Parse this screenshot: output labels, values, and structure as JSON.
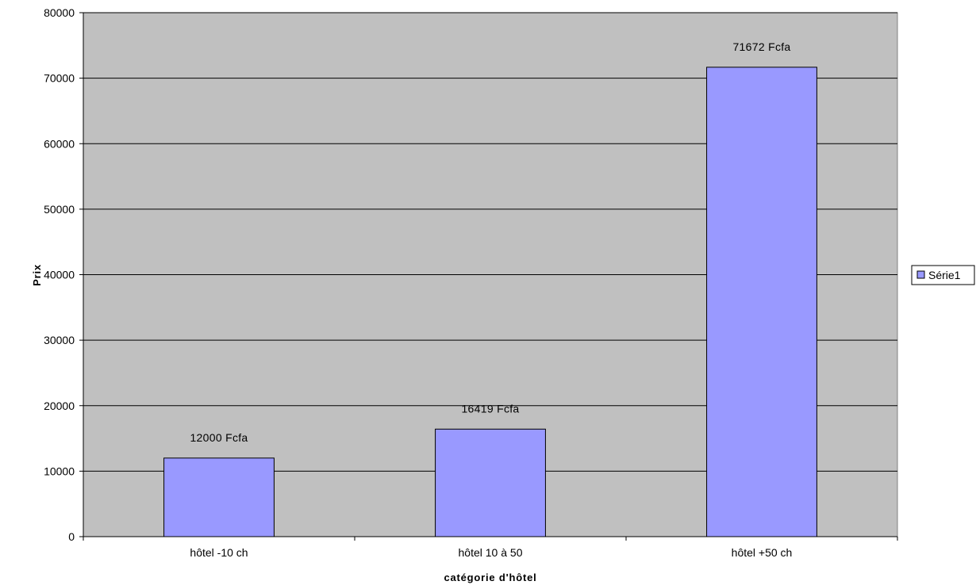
{
  "chart_data": {
    "type": "bar",
    "categories": [
      "hôtel -10 ch",
      "hôtel 10 à 50",
      "hôtel +50 ch"
    ],
    "series": [
      {
        "name": "Série1",
        "values": [
          12000,
          16419,
          71672
        ],
        "data_labels": [
          "12000 Fcfa",
          "16419 Fcfa",
          "71672 Fcfa"
        ],
        "color": "#9999ff"
      }
    ],
    "xlabel": "catégorie d'hôtel",
    "ylabel": "Prix",
    "ylim": [
      0,
      80000
    ],
    "yticks": [
      "0",
      "10000",
      "20000",
      "30000",
      "40000",
      "50000",
      "60000",
      "70000",
      "80000"
    ],
    "grid": true,
    "plot_background": "#c0c0c0",
    "legend_position": "right"
  }
}
